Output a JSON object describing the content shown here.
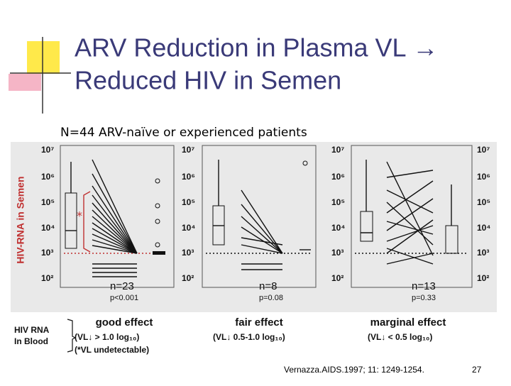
{
  "header": {
    "title_line1": "ARV Reduction in Plasma VL →",
    "title_line2": "Reduced HIV in Semen"
  },
  "subtitle": "N=44 ARV-naïve or experienced patients",
  "figure": {
    "y_axis_label": "HIV-RNA in Semen",
    "y_ticks": [
      "10⁷",
      "10⁶",
      "10⁵",
      "10⁴",
      "10³",
      "10²"
    ],
    "panels": [
      {
        "n": "n=23",
        "p": "p<0.001",
        "effect": "good effect",
        "criterion": "(VL↓ > 1.0 log₁₀)",
        "note": "(*VL undetectable)"
      },
      {
        "n": "n=8",
        "p": "p=0.08",
        "effect": "fair effect",
        "criterion": "(VL↓ 0.5-1.0 log₁₀)"
      },
      {
        "n": "n=13",
        "p": "p=0.33",
        "effect": "marginal effect",
        "criterion": "(VL↓ < 0.5 log₁₀)"
      }
    ],
    "blood_label_line1": "HIV RNA",
    "blood_label_line2": "In Blood",
    "star": "*"
  },
  "footer": {
    "citation": "Vernazza.AIDS.1997; 11: 1249-1254.",
    "page": "27"
  }
}
